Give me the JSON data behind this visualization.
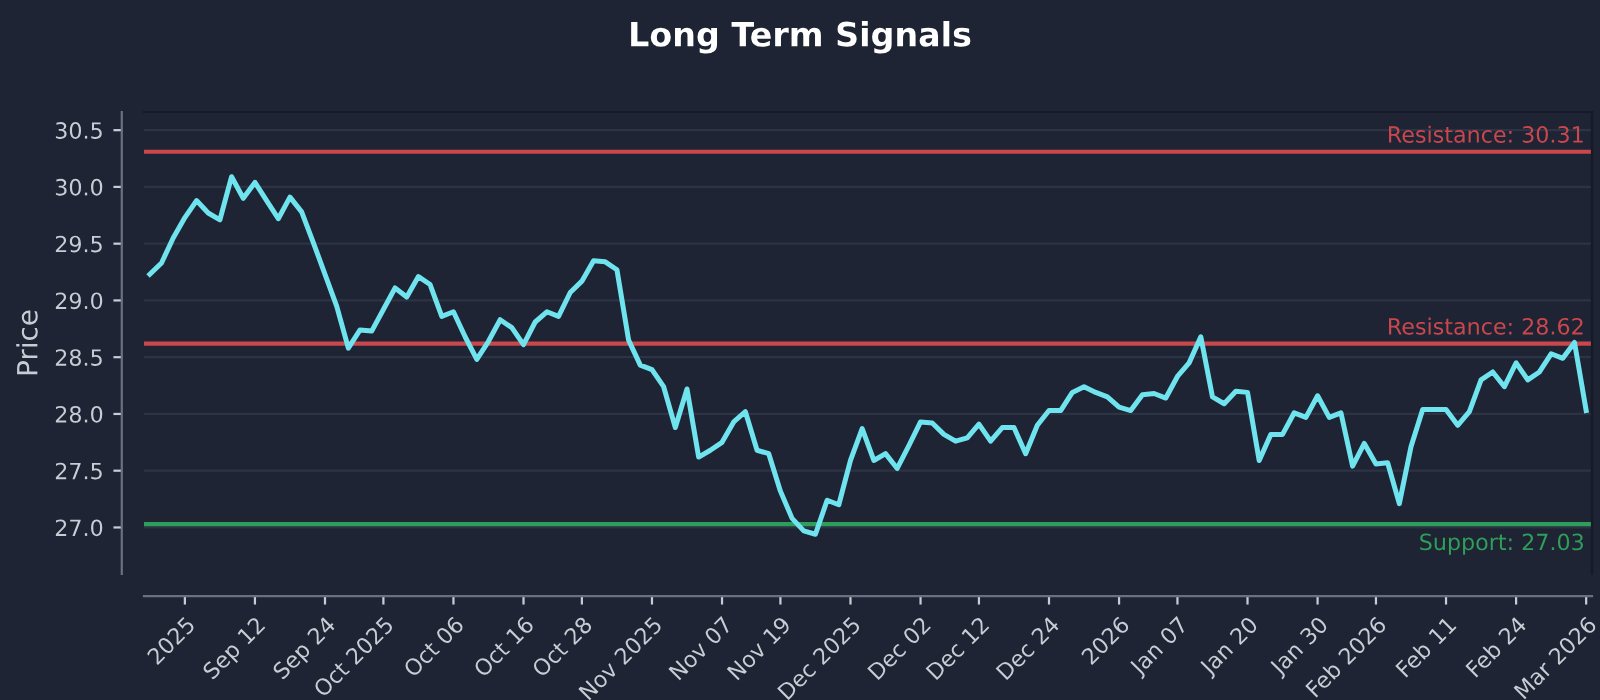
{
  "chart_data": {
    "type": "line",
    "title": "Long Term Signals",
    "ylabel": "Price",
    "categories": [
      null,
      null,
      null,
      "2025",
      null,
      null,
      null,
      null,
      null,
      "Sep 12",
      null,
      null,
      null,
      null,
      null,
      "Sep 24",
      null,
      null,
      null,
      null,
      "Oct 2025",
      null,
      null,
      null,
      null,
      null,
      "Oct 06",
      null,
      null,
      null,
      null,
      null,
      "Oct 16",
      null,
      null,
      null,
      null,
      "Oct 28",
      null,
      null,
      null,
      null,
      null,
      "Nov 2025",
      null,
      null,
      null,
      null,
      null,
      "Nov 07",
      null,
      null,
      null,
      null,
      "Nov 19",
      null,
      null,
      null,
      null,
      null,
      "Dec 2025",
      null,
      null,
      null,
      null,
      null,
      "Dec 02",
      null,
      null,
      null,
      null,
      "Dec 12",
      null,
      null,
      null,
      null,
      null,
      "Dec 24",
      null,
      null,
      null,
      null,
      null,
      "2026",
      null,
      null,
      null,
      null,
      "Jan 07",
      null,
      null,
      null,
      null,
      null,
      "Jan 20",
      null,
      null,
      null,
      null,
      null,
      "Jan 30",
      null,
      null,
      null,
      null,
      "Feb 2026",
      null,
      null,
      null,
      null,
      null,
      "Feb 11",
      null,
      null,
      null,
      null,
      null,
      "Feb 24",
      null,
      null,
      null,
      null,
      null,
      "Mar 2026"
    ],
    "series": [
      {
        "color": "#6fe3ee",
        "values": [
          29.23,
          29.33,
          29.55,
          29.73,
          29.88,
          29.77,
          29.71,
          30.09,
          29.9,
          30.04,
          29.88,
          29.72,
          29.91,
          29.78,
          29.51,
          29.23,
          28.95,
          28.58,
          28.74,
          28.73,
          28.92,
          29.11,
          29.03,
          29.21,
          29.14,
          28.86,
          28.9,
          28.68,
          28.48,
          28.64,
          28.83,
          28.76,
          28.61,
          28.81,
          28.9,
          28.86,
          29.07,
          29.17,
          29.35,
          29.34,
          29.27,
          28.65,
          28.43,
          28.39,
          28.24,
          27.88,
          28.22,
          27.62,
          27.68,
          27.75,
          27.93,
          28.02,
          27.68,
          27.65,
          27.32,
          27.08,
          26.97,
          26.94,
          27.24,
          27.2,
          27.59,
          27.87,
          27.59,
          27.65,
          27.52,
          27.72,
          27.93,
          27.92,
          27.82,
          27.76,
          27.79,
          27.91,
          27.76,
          27.88,
          27.88,
          27.65,
          27.9,
          28.03,
          28.03,
          28.19,
          28.24,
          28.19,
          28.15,
          28.06,
          28.03,
          28.17,
          28.18,
          28.14,
          28.33,
          28.45,
          28.68,
          28.15,
          28.09,
          28.2,
          28.19,
          27.59,
          27.82,
          27.82,
          28.01,
          27.97,
          28.16,
          27.97,
          28.01,
          27.54,
          27.74,
          27.56,
          27.57,
          27.21,
          27.71,
          28.04,
          28.04,
          28.04,
          27.9,
          28.02,
          28.3,
          28.37,
          28.24,
          28.45,
          28.3,
          28.37,
          28.53,
          28.49,
          28.63,
          28.03
        ]
      }
    ],
    "ylim": [
      26.59,
      30.66
    ],
    "yticks": [
      {
        "value": 27,
        "label": "27.0"
      },
      27.5,
      {
        "value": 28,
        "label": "28.0"
      },
      28.5,
      {
        "value": 29,
        "label": "29.0"
      },
      29.5,
      {
        "value": 30,
        "label": "30.0"
      },
      30.5
    ],
    "grid": "y",
    "line_style": "solid",
    "marker": "none",
    "ref_lines": [
      {
        "axis": "y",
        "value": 30.31,
        "label": "Resistance: 30.31",
        "color": "#c9474d"
      },
      {
        "axis": "y",
        "value": 28.62,
        "label": "Resistance: 28.62",
        "color": "#c9474d"
      },
      {
        "axis": "y",
        "value": 27.03,
        "label": "Support: 27.03",
        "color": "#2f9e5a"
      }
    ]
  }
}
